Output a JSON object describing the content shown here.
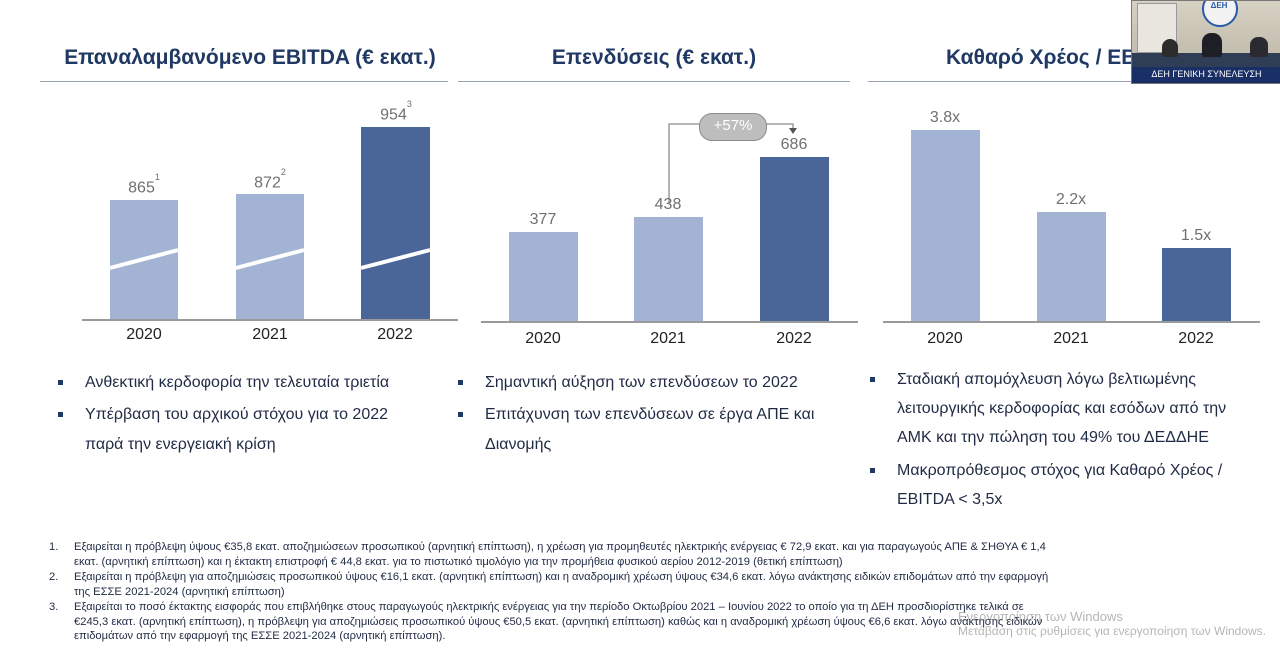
{
  "sections": [
    {
      "title": "Επαναλαμβανόμενο EBITDA (€ εκατ.)"
    },
    {
      "title": "Επενδύσεις (€ εκατ.)"
    },
    {
      "title": "Καθαρό Χρέος / EB"
    }
  ],
  "chart_data": [
    {
      "type": "bar",
      "title": "Επαναλαμβανόμενο EBITDA (€ εκατ.)",
      "categories": [
        "2020",
        "2021",
        "2022"
      ],
      "values": [
        865,
        872,
        954
      ],
      "data_labels": [
        "865",
        "872",
        "954"
      ],
      "footnote_marks": [
        "1",
        "2",
        "3"
      ],
      "highlight_index": 2,
      "broken_axis": true,
      "colors": {
        "light": "#a3b3d4",
        "dark": "#4a6698"
      }
    },
    {
      "type": "bar",
      "title": "Επενδύσεις (€ εκατ.)",
      "categories": [
        "2020",
        "2021",
        "2022"
      ],
      "values": [
        377,
        438,
        686
      ],
      "data_labels": [
        "377",
        "438",
        "686"
      ],
      "annotation": "+57%",
      "highlight_index": 2,
      "ylim": [
        0,
        750
      ],
      "colors": {
        "light": "#a3b3d4",
        "dark": "#4a6698"
      }
    },
    {
      "type": "bar",
      "title": "Καθαρό Χρέος / EB",
      "categories": [
        "2020",
        "2021",
        "2022"
      ],
      "values": [
        3.8,
        2.2,
        1.5
      ],
      "data_labels": [
        "3.8x",
        "2.2x",
        "1.5x"
      ],
      "highlight_index": 2,
      "ylim": [
        0,
        4.2
      ],
      "colors": {
        "light": "#a3b3d4",
        "dark": "#4a6698"
      }
    }
  ],
  "bullets": {
    "col1": [
      {
        "lines": [
          "Ανθεκτική κερδοφορία την τελευταία τριετία"
        ]
      },
      {
        "lines": [
          "Υπέρβαση του αρχικού στόχου για το 2022",
          "παρά την ενεργειακή κρίση"
        ]
      }
    ],
    "col2": [
      {
        "lines": [
          "Σημαντική αύξηση των επενδύσεων το 2022"
        ]
      },
      {
        "lines": [
          "Επιτάχυνση των επενδύσεων σε έργα ΑΠΕ και",
          "Διανομής"
        ]
      }
    ],
    "col3": [
      {
        "lines": [
          "Σταδιακή απομόχλευση λόγω βελτιωμένης",
          "λειτουργικής κερδοφορίας και εσόδων από την",
          "ΑΜΚ και την  πώληση του 49% του ΔΕΔΔΗΕ"
        ]
      },
      {
        "lines": [
          "Μακροπρόθεσμος στόχος για Καθαρό Χρέος /",
          "EBITDA < 3,5x"
        ]
      }
    ]
  },
  "footnotes": [
    {
      "num": "1.",
      "lines": [
        "Εξαιρείται η πρόβλεψη ύψους €35,8 εκατ. αποζημιώσεων προσωπικού (αρνητική επίπτωση), η χρέωση για προμηθευτές ηλεκτρικής ενέργειας € 72,9 εκατ. και για παραγωγούς ΑΠΕ & ΣΗΘΥΑ € 1,4",
        "εκατ. (αρνητική επίπτωση) και η έκτακτη επιστροφή € 44,8 εκατ. για το πιστωτικό τιμολόγιο για την προμήθεια φυσικού αερίου 2012-2019 (θετική επίπτωση)"
      ]
    },
    {
      "num": "2.",
      "lines": [
        "Εξαιρείται η πρόβλεψη για αποζημιώσεις προσωπικού ύψους €16,1 εκατ. (αρνητική επίπτωση) και η αναδρομική χρέωση ύψους €34,6 εκατ.  λόγω ανάκτησης ειδικών επιδομάτων από την εφαρμογή",
        "της ΕΣΣΕ 2021-2024 (αρνητική επίπτωση)"
      ]
    },
    {
      "num": "3.",
      "lines": [
        "Εξαιρείται το ποσό έκτακτης εισφοράς που επιβλήθηκε στους παραγωγούς ηλεκτρικής ενέργειας  για την περίοδο Οκτωβρίου 2021 – Ιουνίου 2022 το οποίο για τη ΔΕΗ προσδιορίστηκε τελικά σε",
        "€245,3 εκατ. (αρνητική επίπτωση), η  πρόβλεψη για αποζημιώσεις προσωπικού ύψους €50,5 εκατ. (αρνητική επίπτωση) καθώς και η αναδρομική χρέωση ύψους €6,6 εκατ. λόγω ανάκτησης ειδικών",
        "επιδομάτων από την εφαρμογή της ΕΣΣΕ 2021-2024 (αρνητική επίπτωση)."
      ]
    }
  ],
  "video_overlay": {
    "caption": "ΔΕΗ ΓΕΝΙΚΗ ΣΥΝΕΛΕΥΣΗ",
    "logo_text": "ΔΕΗ"
  },
  "watermark": {
    "line1": "Ενεργοποίηση των Windows",
    "line2": "Μετάβαση στις ρυθμίσεις για ενεργοποίηση των Windows."
  }
}
